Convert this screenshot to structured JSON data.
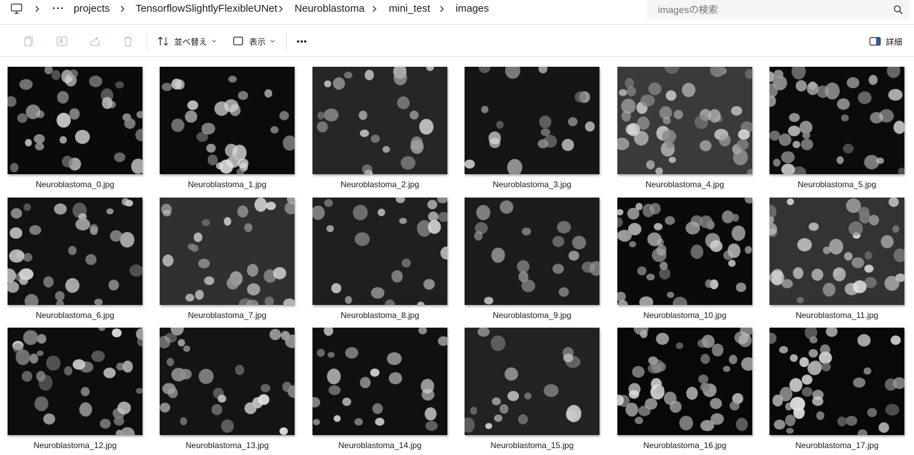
{
  "address": {
    "breadcrumb": [
      "projects",
      "TensorflowSlightlyFlexibleUNet",
      "Neuroblastoma",
      "mini_test",
      "images"
    ],
    "ellipsis": "···",
    "search_placeholder": "imagesの検索"
  },
  "toolbar": {
    "sort_label": "並べ替え",
    "view_label": "表示",
    "more_label": "•••",
    "details_label": "詳細"
  },
  "files": [
    {
      "name": "Neuroblastoma_0.jpg",
      "bg": "#0a0a0a"
    },
    {
      "name": "Neuroblastoma_1.jpg",
      "bg": "#0b0b0b"
    },
    {
      "name": "Neuroblastoma_2.jpg",
      "bg": "#262626"
    },
    {
      "name": "Neuroblastoma_3.jpg",
      "bg": "#151515"
    },
    {
      "name": "Neuroblastoma_4.jpg",
      "bg": "#3a3a3a"
    },
    {
      "name": "Neuroblastoma_5.jpg",
      "bg": "#0b0b0b"
    },
    {
      "name": "Neuroblastoma_6.jpg",
      "bg": "#121212"
    },
    {
      "name": "Neuroblastoma_7.jpg",
      "bg": "#303030"
    },
    {
      "name": "Neuroblastoma_8.jpg",
      "bg": "#1f1f1f"
    },
    {
      "name": "Neuroblastoma_9.jpg",
      "bg": "#1c1c1c"
    },
    {
      "name": "Neuroblastoma_10.jpg",
      "bg": "#0a0a0a"
    },
    {
      "name": "Neuroblastoma_11.jpg",
      "bg": "#333333"
    },
    {
      "name": "Neuroblastoma_12.jpg",
      "bg": "#0d0d0d"
    },
    {
      "name": "Neuroblastoma_13.jpg",
      "bg": "#141414"
    },
    {
      "name": "Neuroblastoma_14.jpg",
      "bg": "#101010"
    },
    {
      "name": "Neuroblastoma_15.jpg",
      "bg": "#222222"
    },
    {
      "name": "Neuroblastoma_16.jpg",
      "bg": "#080808"
    },
    {
      "name": "Neuroblastoma_17.jpg",
      "bg": "#080808"
    }
  ]
}
